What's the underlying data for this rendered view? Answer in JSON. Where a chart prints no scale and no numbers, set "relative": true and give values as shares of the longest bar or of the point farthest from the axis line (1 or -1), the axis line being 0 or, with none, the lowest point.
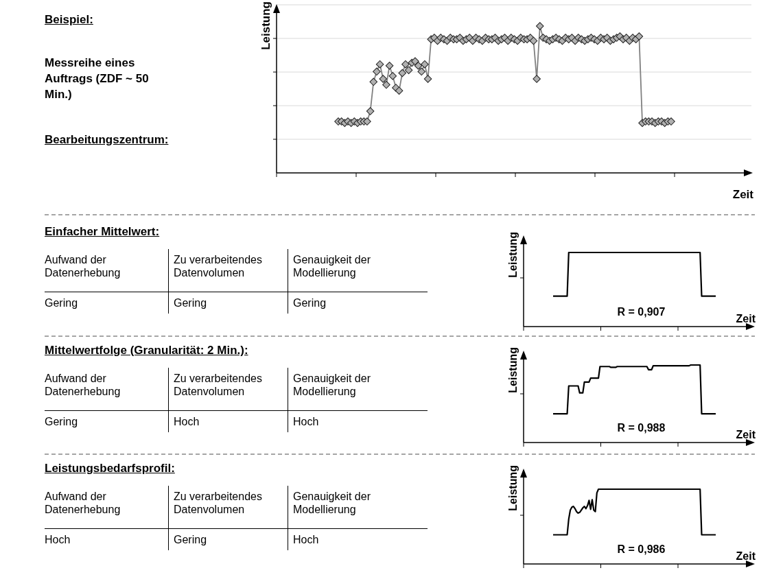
{
  "chart_data": [
    {
      "type": "other",
      "title": "Beispiel:",
      "annotations": [
        "Messreihe eines Auftrags (ZDF ~ 50 Min.)"
      ]
    },
    {
      "type": "other",
      "title": "Bearbeitungszentrum:"
    },
    {
      "type": "line",
      "relative": true,
      "xlabel": "Zeit",
      "ylabel": "Leistung",
      "grid": true,
      "marker": "diamond",
      "categories": [
        null,
        null,
        null,
        null,
        null,
        null,
        null,
        null,
        null,
        null,
        null,
        null,
        null,
        null,
        null,
        null,
        null,
        null,
        null,
        null,
        null,
        null,
        null,
        null,
        null,
        null,
        null,
        null,
        null,
        null,
        null,
        null,
        null,
        null,
        null,
        null,
        null,
        null,
        null,
        null,
        null,
        null,
        null,
        null,
        null,
        null,
        null,
        null,
        null,
        null,
        null,
        null,
        null,
        null,
        null,
        null,
        null,
        null,
        null,
        null,
        null,
        null,
        null,
        null,
        null,
        null,
        null,
        null,
        null,
        null,
        null,
        null,
        null,
        null,
        null,
        null,
        null,
        null,
        null,
        null,
        null,
        null,
        null,
        null,
        null,
        null,
        null,
        null,
        null,
        null,
        null,
        null,
        null,
        null,
        null,
        null,
        null,
        null,
        null,
        null,
        null,
        null,
        null,
        null,
        null
      ],
      "series": [
        {
          "color": "#808080",
          "values": [
            0.35,
            0.35,
            0.34,
            0.35,
            0.34,
            0.35,
            0.34,
            0.35,
            0.35,
            0.35,
            0.42,
            0.62,
            0.69,
            0.74,
            0.64,
            0.6,
            0.73,
            0.66,
            0.58,
            0.56,
            0.68,
            0.74,
            0.7,
            0.75,
            0.76,
            0.73,
            0.69,
            0.74,
            0.64,
            0.91,
            0.92,
            0.9,
            0.92,
            0.91,
            0.9,
            0.92,
            0.91,
            0.91,
            0.92,
            0.9,
            0.91,
            0.92,
            0.9,
            0.92,
            0.91,
            0.9,
            0.92,
            0.91,
            0.91,
            0.92,
            0.9,
            0.91,
            0.92,
            0.9,
            0.92,
            0.91,
            0.9,
            0.92,
            0.91,
            0.91,
            0.92,
            0.9,
            0.64,
            1.0,
            0.92,
            0.91,
            0.9,
            0.91,
            0.92,
            0.91,
            0.9,
            0.92,
            0.91,
            0.92,
            0.9,
            0.92,
            0.91,
            0.9,
            0.91,
            0.92,
            0.91,
            0.9,
            0.92,
            0.91,
            0.92,
            0.9,
            0.91,
            0.92,
            0.93,
            0.91,
            0.92,
            0.9,
            0.92,
            0.91,
            0.93,
            0.34,
            0.35,
            0.35,
            0.35,
            0.34,
            0.35,
            0.35,
            0.34,
            0.35,
            0.35
          ]
        }
      ]
    },
    {
      "type": "other",
      "title": "Einfacher Mittelwert:",
      "annotations": [
        "Aufwand der Datenerhebung",
        "Zu verarbeitendes Datenvolumen",
        "Genauigkeit der Modellierung",
        "Gering",
        "Gering",
        "Gering"
      ]
    },
    {
      "type": "line",
      "relative": true,
      "xlabel": "Zeit",
      "ylabel": "Leistung",
      "annotations": [
        "R = 0,907"
      ],
      "categories": [
        null,
        null,
        null,
        null,
        null,
        null,
        null,
        null,
        null,
        null,
        null,
        null,
        null,
        null,
        null,
        null,
        null,
        null,
        null,
        null,
        null,
        null,
        null,
        null,
        null,
        null,
        null,
        null,
        null,
        null,
        null,
        null,
        null,
        null,
        null,
        null,
        null,
        null,
        null,
        null,
        null,
        null,
        null,
        null,
        null,
        null,
        null,
        null,
        null,
        null,
        null,
        null,
        null,
        null,
        null,
        null,
        null,
        null,
        null,
        null,
        null,
        null,
        null,
        null,
        null,
        null,
        null,
        null,
        null,
        null,
        null,
        null,
        null,
        null,
        null,
        null,
        null,
        null,
        null,
        null,
        null,
        null,
        null,
        null,
        null,
        null,
        null,
        null,
        null,
        null,
        null,
        null,
        null,
        null,
        null,
        null,
        null,
        null,
        null,
        null,
        null,
        null,
        null,
        null,
        null
      ],
      "series": [
        {
          "color": "#000000",
          "values": [
            0.41,
            0.41,
            0.41,
            0.41,
            0.41,
            0.41,
            0.41,
            0.41,
            0.41,
            0.41,
            1,
            1,
            1,
            1,
            1,
            1,
            1,
            1,
            1,
            1,
            1,
            1,
            1,
            1,
            1,
            1,
            1,
            1,
            1,
            1,
            1,
            1,
            1,
            1,
            1,
            1,
            1,
            1,
            1,
            1,
            1,
            1,
            1,
            1,
            1,
            1,
            1,
            1,
            1,
            1,
            1,
            1,
            1,
            1,
            1,
            1,
            1,
            1,
            1,
            1,
            1,
            1,
            1,
            1,
            1,
            1,
            1,
            1,
            1,
            1,
            1,
            1,
            1,
            1,
            1,
            1,
            1,
            1,
            1,
            1,
            1,
            1,
            1,
            1,
            1,
            1,
            1,
            1,
            1,
            1,
            1,
            1,
            1,
            1,
            1,
            0.41,
            0.41,
            0.41,
            0.41,
            0.41,
            0.41,
            0.41,
            0.41,
            0.41,
            0.41
          ]
        }
      ]
    },
    {
      "type": "other",
      "title": "Mittelwertfolge (Granularität: 2 Min.):",
      "annotations": [
        "Aufwand der Datenerhebung",
        "Zu verarbeitendes Datenvolumen",
        "Genauigkeit der Modellierung",
        "Gering",
        "Hoch",
        "Hoch"
      ]
    },
    {
      "type": "line",
      "relative": true,
      "xlabel": "Zeit",
      "ylabel": "Leistung",
      "annotations": [
        "R = 0,988"
      ],
      "categories": [
        null,
        null,
        null,
        null,
        null,
        null,
        null,
        null,
        null,
        null,
        null,
        null,
        null,
        null,
        null,
        null,
        null,
        null,
        null,
        null,
        null,
        null,
        null,
        null,
        null,
        null,
        null,
        null,
        null,
        null,
        null,
        null,
        null,
        null,
        null,
        null,
        null,
        null,
        null,
        null,
        null,
        null,
        null,
        null,
        null,
        null,
        null,
        null,
        null,
        null,
        null,
        null,
        null,
        null,
        null,
        null,
        null,
        null,
        null,
        null,
        null,
        null,
        null,
        null,
        null,
        null,
        null,
        null,
        null,
        null,
        null,
        null,
        null,
        null,
        null,
        null,
        null,
        null,
        null,
        null,
        null,
        null,
        null,
        null,
        null,
        null,
        null,
        null,
        null,
        null,
        null,
        null,
        null,
        null,
        null,
        null,
        null,
        null,
        null,
        null,
        null,
        null,
        null,
        null,
        null
      ],
      "series": [
        {
          "color": "#000000",
          "values": [
            0.37,
            0.37,
            0.37,
            0.37,
            0.37,
            0.37,
            0.37,
            0.37,
            0.37,
            0.37,
            0.73,
            0.73,
            0.73,
            0.73,
            0.73,
            0.73,
            0.73,
            0.64,
            0.64,
            0.64,
            0.78,
            0.78,
            0.78,
            0.78,
            0.83,
            0.83,
            0.83,
            0.83,
            0.83,
            0.83,
            0.98,
            0.98,
            0.98,
            0.98,
            0.98,
            0.98,
            0.98,
            0.97,
            0.97,
            0.97,
            0.97,
            0.98,
            0.98,
            0.98,
            0.98,
            0.98,
            0.98,
            0.98,
            0.98,
            0.98,
            0.98,
            0.98,
            0.98,
            0.98,
            0.98,
            0.98,
            0.98,
            0.98,
            0.98,
            0.98,
            0.98,
            0.94,
            0.94,
            0.94,
            0.99,
            0.99,
            0.99,
            0.99,
            0.99,
            0.99,
            0.99,
            0.99,
            0.99,
            0.99,
            0.99,
            0.99,
            0.99,
            0.99,
            0.99,
            0.99,
            0.99,
            0.99,
            0.99,
            0.99,
            0.99,
            0.99,
            0.99,
            0.99,
            1,
            1,
            1,
            1,
            1,
            1,
            1,
            0.37,
            0.37,
            0.37,
            0.37,
            0.37,
            0.37,
            0.37,
            0.37,
            0.37,
            0.37
          ]
        }
      ]
    },
    {
      "type": "other",
      "title": "Leistungsbedarfsprofil:",
      "annotations": [
        "Aufwand der Datenerhebung",
        "Zu verarbeitendes Datenvolumen",
        "Genauigkeit der Modellierung",
        "Hoch",
        "Gering",
        "Hoch"
      ]
    },
    {
      "type": "line",
      "relative": true,
      "xlabel": "Zeit",
      "ylabel": "Leistung",
      "annotations": [
        "R = 0,986"
      ],
      "categories": [
        null,
        null,
        null,
        null,
        null,
        null,
        null,
        null,
        null,
        null,
        null,
        null,
        null,
        null,
        null,
        null,
        null,
        null,
        null,
        null,
        null,
        null,
        null,
        null,
        null,
        null,
        null,
        null,
        null,
        null,
        null,
        null,
        null,
        null,
        null,
        null,
        null,
        null,
        null,
        null,
        null,
        null,
        null,
        null,
        null,
        null,
        null,
        null,
        null,
        null,
        null,
        null,
        null,
        null,
        null,
        null,
        null,
        null,
        null,
        null,
        null,
        null,
        null,
        null,
        null,
        null,
        null,
        null,
        null,
        null,
        null,
        null,
        null,
        null,
        null,
        null,
        null,
        null,
        null,
        null,
        null,
        null,
        null,
        null,
        null,
        null,
        null,
        null,
        null,
        null,
        null,
        null,
        null,
        null,
        null,
        null,
        null,
        null,
        null,
        null,
        null,
        null,
        null,
        null,
        null
      ],
      "series": [
        {
          "color": "#000000",
          "values": [
            0.39,
            0.39,
            0.39,
            0.39,
            0.39,
            0.39,
            0.39,
            0.39,
            0.39,
            0.39,
            0.6,
            0.72,
            0.76,
            0.77,
            0.74,
            0.7,
            0.68,
            0.69,
            0.72,
            0.75,
            0.77,
            0.74,
            0.78,
            0.85,
            0.73,
            0.86,
            0.72,
            0.7,
            0.95,
            1,
            1,
            1,
            1,
            1,
            1,
            1,
            1,
            1,
            1,
            1,
            1,
            1,
            1,
            1,
            1,
            1,
            1,
            1,
            1,
            1,
            1,
            1,
            1,
            1,
            1,
            1,
            1,
            1,
            1,
            1,
            1,
            1,
            1,
            1,
            1,
            1,
            1,
            1,
            1,
            1,
            1,
            1,
            1,
            1,
            1,
            1,
            1,
            1,
            1,
            1,
            1,
            1,
            1,
            1,
            1,
            1,
            1,
            1,
            1,
            1,
            1,
            1,
            1,
            1,
            1,
            0.39,
            0.39,
            0.39,
            0.39,
            0.39,
            0.39,
            0.39,
            0.39,
            0.39,
            0.39
          ]
        }
      ]
    }
  ]
}
